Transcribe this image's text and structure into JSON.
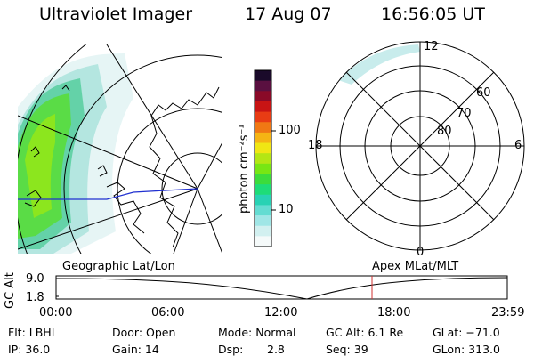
{
  "header": {
    "title": "Ultraviolet Imager",
    "date": "17 Aug 07",
    "time": "16:56:05 UT"
  },
  "colorbar": {
    "label": "photon cm⁻²s⁻¹",
    "ticks": [
      "100",
      "10"
    ],
    "colors": [
      "#1a0a2a",
      "#5a1040",
      "#8a0a28",
      "#c81414",
      "#e83c14",
      "#f07814",
      "#f5b414",
      "#f0e614",
      "#b4e614",
      "#78e614",
      "#3cdc3c",
      "#1edc78",
      "#28d2b4",
      "#64dcd2",
      "#a0e6e6",
      "#d2f0f0",
      "#f5fafa"
    ]
  },
  "polar_plot": {
    "labels": {
      "top": "12",
      "bottom": "0",
      "left": "18",
      "right": "6"
    },
    "latitudes": [
      "60",
      "70",
      "80"
    ]
  },
  "map": {
    "caption": "Geographic Lat/Lon"
  },
  "timeline": {
    "ylabel": "GC Alt",
    "yticks": [
      "9.0",
      "1.8"
    ],
    "right_caption": "Apex MLat/MLT",
    "xticks": [
      "00:00",
      "06:00",
      "12:00",
      "18:00",
      "23:59"
    ],
    "marker_color": "#d03030"
  },
  "info": {
    "flt": "Flt: LBHL",
    "ip": "IP: 36.0",
    "door": "Door: Open",
    "gain": "Gain: 14",
    "mode": "Mode: Normal",
    "dsp_label": "Dsp:",
    "dsp_value": "2.8",
    "gc_alt": "GC Alt: 6.1 Re",
    "seq": "Seq: 39",
    "glat": "GLat: −71.0",
    "glon": "GLon: 313.0"
  }
}
